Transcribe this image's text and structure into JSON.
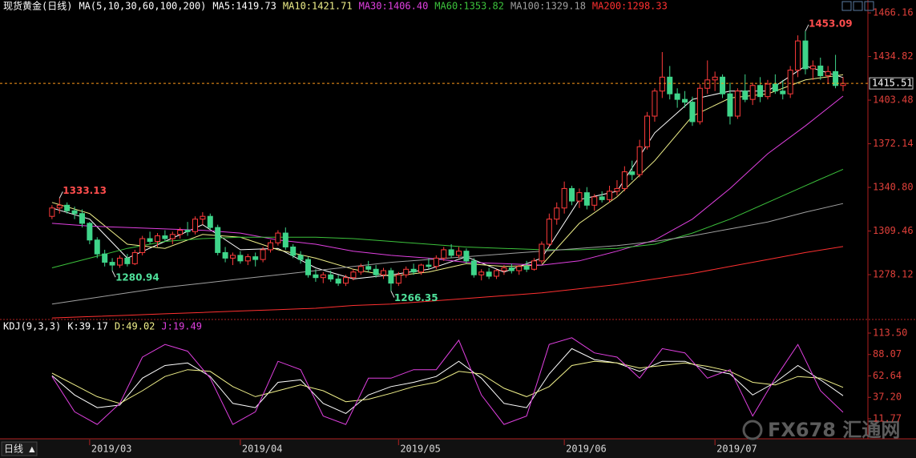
{
  "chart_data": [
    {
      "type": "candlestick",
      "title": "现货黄金(日线)",
      "ma_label": "MA(5,10,30,60,100,200)",
      "xlim": [
        -6.9,
        108.3
      ],
      "ylim": [
        1246.5,
        1475.4
      ],
      "yticks": [
        1466.16,
        1434.82,
        1403.48,
        1372.14,
        {
          "value": 1340.8,
          "label": "1340.80"
        },
        1309.46,
        1278.12
      ],
      "up_color": "#ff3b3b",
      "down_color": "#3fd58a",
      "last_price_color": "#ff9a1a",
      "candles": [
        [
          1320,
          1328,
          1318,
          1326
        ],
        [
          1326,
          1333.13,
          1322,
          1328
        ],
        [
          1328,
          1330,
          1322,
          1324
        ],
        [
          1324,
          1327,
          1318,
          1322
        ],
        [
          1322,
          1325,
          1312,
          1315
        ],
        [
          1315,
          1316,
          1300,
          1303
        ],
        [
          1303,
          1305,
          1290,
          1293
        ],
        [
          1293,
          1296,
          1284,
          1287
        ],
        [
          1287,
          1290,
          1280.94,
          1285
        ],
        [
          1285,
          1292,
          1283,
          1290
        ],
        [
          1290,
          1293,
          1284,
          1286
        ],
        [
          1286,
          1296,
          1285,
          1294
        ],
        [
          1294,
          1306,
          1292,
          1304
        ],
        [
          1304,
          1309,
          1300,
          1302
        ],
        [
          1302,
          1308,
          1298,
          1306
        ],
        [
          1306,
          1310,
          1302,
          1304
        ],
        [
          1304,
          1309,
          1300,
          1307
        ],
        [
          1307,
          1312,
          1304,
          1310
        ],
        [
          1310,
          1316,
          1306,
          1309
        ],
        [
          1309,
          1320,
          1307,
          1318
        ],
        [
          1318,
          1323,
          1314,
          1320
        ],
        [
          1320,
          1322,
          1310,
          1312
        ],
        [
          1312,
          1314,
          1292,
          1294
        ],
        [
          1294,
          1298,
          1287,
          1290
        ],
        [
          1290,
          1294,
          1285,
          1292
        ],
        [
          1292,
          1295,
          1286,
          1288
        ],
        [
          1288,
          1293,
          1285,
          1291
        ],
        [
          1291,
          1294,
          1284,
          1289
        ],
        [
          1289,
          1298,
          1287,
          1296
        ],
        [
          1296,
          1303,
          1294,
          1301
        ],
        [
          1301,
          1310,
          1299,
          1308
        ],
        [
          1308,
          1312,
          1296,
          1298
        ],
        [
          1298,
          1300,
          1290,
          1292
        ],
        [
          1292,
          1295,
          1286,
          1289
        ],
        [
          1289,
          1291,
          1276,
          1278
        ],
        [
          1278,
          1282,
          1273,
          1276
        ],
        [
          1276,
          1280,
          1272,
          1278
        ],
        [
          1278,
          1281,
          1273,
          1275
        ],
        [
          1275,
          1278,
          1270,
          1272
        ],
        [
          1272,
          1278,
          1270,
          1276
        ],
        [
          1276,
          1282,
          1274,
          1280
        ],
        [
          1280,
          1286,
          1278,
          1284
        ],
        [
          1284,
          1288,
          1280,
          1282
        ],
        [
          1282,
          1285,
          1276,
          1278
        ],
        [
          1278,
          1283,
          1275,
          1281
        ],
        [
          1281,
          1283,
          1266.35,
          1272
        ],
        [
          1272,
          1280,
          1270,
          1278
        ],
        [
          1278,
          1284,
          1276,
          1282
        ],
        [
          1282,
          1286,
          1278,
          1280
        ],
        [
          1280,
          1286,
          1278,
          1285
        ],
        [
          1285,
          1290,
          1282,
          1284
        ],
        [
          1284,
          1292,
          1282,
          1290
        ],
        [
          1290,
          1298,
          1288,
          1296
        ],
        [
          1296,
          1300,
          1290,
          1292
        ],
        [
          1292,
          1298,
          1290,
          1295
        ],
        [
          1295,
          1297,
          1286,
          1288
        ],
        [
          1288,
          1290,
          1276,
          1278
        ],
        [
          1278,
          1282,
          1274,
          1280
        ],
        [
          1280,
          1283,
          1275,
          1277
        ],
        [
          1277,
          1282,
          1275,
          1281
        ],
        [
          1281,
          1285,
          1278,
          1283
        ],
        [
          1283,
          1286,
          1279,
          1281
        ],
        [
          1281,
          1285,
          1278,
          1284
        ],
        [
          1284,
          1288,
          1280,
          1282
        ],
        [
          1282,
          1290,
          1281,
          1288
        ],
        [
          1288,
          1302,
          1286,
          1300
        ],
        [
          1300,
          1322,
          1298,
          1318
        ],
        [
          1318,
          1330,
          1314,
          1326
        ],
        [
          1326,
          1345,
          1322,
          1340
        ],
        [
          1340,
          1342,
          1328,
          1331
        ],
        [
          1331,
          1340,
          1326,
          1337
        ],
        [
          1337,
          1341,
          1325,
          1328
        ],
        [
          1328,
          1336,
          1324,
          1334
        ],
        [
          1334,
          1338,
          1330,
          1332
        ],
        [
          1332,
          1342,
          1330,
          1338
        ],
        [
          1338,
          1346,
          1335,
          1340
        ],
        [
          1340,
          1356,
          1338,
          1352
        ],
        [
          1352,
          1360,
          1346,
          1350
        ],
        [
          1350,
          1375,
          1348,
          1370
        ],
        [
          1370,
          1395,
          1368,
          1392
        ],
        [
          1392,
          1412,
          1388,
          1410
        ],
        [
          1410,
          1438,
          1405,
          1420
        ],
        [
          1420,
          1428,
          1404,
          1408
        ],
        [
          1408,
          1412,
          1398,
          1404
        ],
        [
          1404,
          1410,
          1398,
          1402
        ],
        [
          1402,
          1406,
          1385,
          1388
        ],
        [
          1388,
          1415,
          1386,
          1412
        ],
        [
          1412,
          1432,
          1408,
          1418
        ],
        [
          1418,
          1424,
          1410,
          1420
        ],
        [
          1420,
          1422,
          1405,
          1408
        ],
        [
          1408,
          1416,
          1386,
          1392
        ],
        [
          1392,
          1412,
          1390,
          1410
        ],
        [
          1410,
          1422,
          1402,
          1404
        ],
        [
          1404,
          1416,
          1400,
          1414
        ],
        [
          1414,
          1420,
          1402,
          1406
        ],
        [
          1406,
          1418,
          1404,
          1415
        ],
        [
          1415,
          1422,
          1408,
          1410
        ],
        [
          1410,
          1418,
          1404,
          1408
        ],
        [
          1408,
          1428,
          1405,
          1425
        ],
        [
          1425,
          1450,
          1420,
          1446
        ],
        [
          1446,
          1453.09,
          1422,
          1426
        ],
        [
          1426,
          1432,
          1418,
          1428
        ],
        [
          1428,
          1434,
          1418,
          1421
        ],
        [
          1421,
          1428,
          1415,
          1424
        ],
        [
          1424,
          1436,
          1412,
          1414
        ],
        [
          1414,
          1420,
          1410,
          1415.51
        ]
      ],
      "annotations": [
        {
          "x": 1,
          "value": 1333.13,
          "label": "1333.13",
          "position": "above",
          "color": "#ff4d4d"
        },
        {
          "x": 8,
          "value": 1280.94,
          "label": "1280.94",
          "position": "below",
          "color": "#4fe09a"
        },
        {
          "x": 45,
          "value": 1266.35,
          "label": "1266.35",
          "position": "below",
          "color": "#4fe09a"
        },
        {
          "x": 100,
          "value": 1453.09,
          "label": "1453.09",
          "position": "above",
          "color": "#ff4d4d"
        }
      ],
      "x": [
        0,
        5,
        10,
        15,
        20,
        25,
        30,
        35,
        40,
        45,
        50,
        55,
        60,
        65,
        70,
        75,
        80,
        85,
        90,
        95,
        100,
        105
      ],
      "series": [
        {
          "name": "MA5:1419.73",
          "color": "#ffffff",
          "values": [
            1326,
            1318,
            1290,
            1302,
            1314,
            1296,
            1297,
            1283,
            1275,
            1278,
            1282,
            1291,
            1280,
            1290,
            1332,
            1338,
            1380,
            1404,
            1410,
            1410,
            1428,
            1419.73
          ]
        },
        {
          "name": "MA10:1421.71",
          "color": "#f0f08a",
          "values": [
            1330,
            1322,
            1300,
            1297,
            1307,
            1305,
            1296,
            1290,
            1282,
            1277,
            1280,
            1286,
            1284,
            1285,
            1315,
            1334,
            1360,
            1392,
            1405,
            1408,
            1418,
            1421.71
          ]
        },
        {
          "name": "MA30:1406.40",
          "color": "#e040e0",
          "values": [
            1315,
            1313,
            1312,
            1311,
            1310,
            1308,
            1303,
            1300,
            1295,
            1292,
            1290,
            1287,
            1286,
            1285,
            1288,
            1295,
            1303,
            1318,
            1340,
            1365,
            1385,
            1406.4
          ]
        },
        {
          "name": "MA60:1353.82",
          "color": "#3cc23c",
          "values": [
            1283,
            1290,
            1297,
            1302,
            1304,
            1305,
            1305,
            1305,
            1304,
            1302,
            1300,
            1298,
            1297,
            1296,
            1296,
            1297,
            1300,
            1308,
            1318,
            1330,
            1342,
            1353.82
          ]
        },
        {
          "name": "MA100:1329.18",
          "color": "#a0a0a0",
          "values": [
            1257,
            1261,
            1265,
            1269,
            1272,
            1275,
            1278,
            1281,
            1284,
            1287,
            1289,
            1291,
            1293,
            1295,
            1297,
            1299,
            1302,
            1306,
            1311,
            1316,
            1323,
            1329.18
          ]
        },
        {
          "name": "MA200:1298.33",
          "color": "#ff3030",
          "values": [
            1247,
            1248,
            1249,
            1250,
            1251,
            1252,
            1253,
            1254,
            1256,
            1257,
            1259,
            1261,
            1263,
            1265,
            1268,
            1271,
            1275,
            1279,
            1284,
            1289,
            1294,
            1298.33
          ]
        }
      ]
    },
    {
      "type": "line",
      "title": "KDJ(9,3,3)",
      "xlim": [
        -6.9,
        108.3
      ],
      "ylim": [
        -12,
        128.7
      ],
      "yticks": [
        {
          "value": 113.5,
          "label": "113.50"
        },
        88.07,
        62.64,
        {
          "value": 37.2,
          "label": "37.20"
        },
        11.77
      ],
      "xticks": [
        {
          "value": 5,
          "label": "2019/03"
        },
        {
          "value": 25,
          "label": "2019/04"
        },
        {
          "value": 46,
          "label": "2019/05"
        },
        {
          "value": 68,
          "label": "2019/06"
        },
        {
          "value": 88,
          "label": "2019/07"
        }
      ],
      "x": [
        0,
        3,
        6,
        9,
        12,
        15,
        18,
        21,
        24,
        27,
        30,
        33,
        36,
        39,
        42,
        45,
        48,
        51,
        54,
        57,
        60,
        63,
        66,
        69,
        72,
        75,
        78,
        81,
        84,
        87,
        90,
        93,
        96,
        99,
        102,
        105
      ],
      "series": [
        {
          "name": "K:39.17",
          "color": "#ffffff",
          "values": [
            63,
            40,
            25,
            28,
            60,
            75,
            78,
            62,
            30,
            25,
            55,
            58,
            30,
            18,
            40,
            50,
            55,
            62,
            80,
            60,
            30,
            25,
            65,
            95,
            82,
            78,
            68,
            80,
            80,
            70,
            65,
            40,
            55,
            75,
            58,
            39.17
          ]
        },
        {
          "name": "D:49.02",
          "color": "#f0f08a",
          "values": [
            66,
            52,
            38,
            30,
            45,
            62,
            70,
            68,
            50,
            38,
            45,
            52,
            45,
            32,
            35,
            42,
            50,
            55,
            68,
            65,
            48,
            38,
            50,
            75,
            80,
            78,
            72,
            75,
            78,
            74,
            68,
            55,
            52,
            62,
            60,
            49.02
          ]
        },
        {
          "name": "J:19.49",
          "color": "#e040e0",
          "values": [
            62,
            20,
            5,
            30,
            85,
            100,
            92,
            60,
            5,
            20,
            80,
            70,
            15,
            5,
            60,
            60,
            70,
            70,
            105,
            40,
            5,
            15,
            100,
            108,
            90,
            85,
            60,
            95,
            90,
            60,
            70,
            15,
            60,
            100,
            45,
            19.49
          ]
        }
      ]
    }
  ],
  "ui": {
    "period_button": "日线 ▲",
    "watermark": "FX678 汇通网"
  }
}
